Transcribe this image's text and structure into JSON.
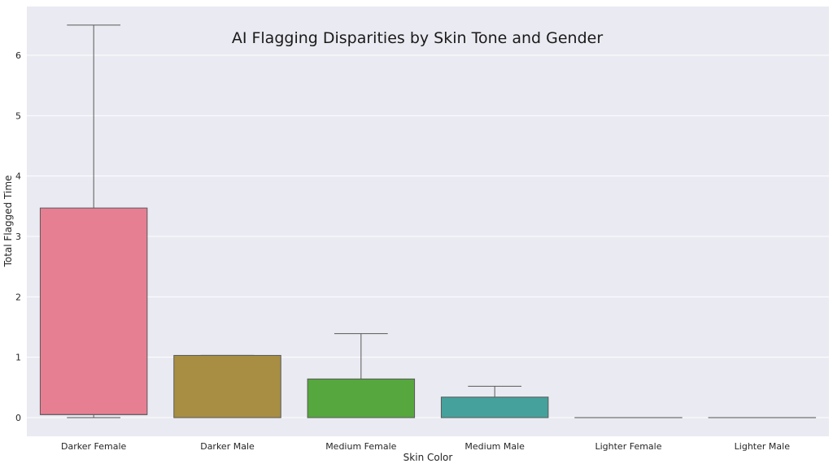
{
  "chart_data": {
    "type": "box",
    "title": "AI Flagging Disparities by Skin Tone and Gender",
    "xlabel": "Skin Color",
    "ylabel": "Total Flagged Time",
    "ylim": [
      -0.3,
      6.75
    ],
    "yticks": [
      0,
      1,
      2,
      3,
      4,
      5,
      6
    ],
    "grid": true,
    "categories": [
      "Darker Female",
      "Darker Male",
      "Medium Female",
      "Medium Male",
      "Lighter Female",
      "Lighter Male"
    ],
    "boxes": [
      {
        "category": "Darker Female",
        "whisker_low": 0,
        "q1": 0.05,
        "median": 0.05,
        "q3": 3.47,
        "whisker_high": 6.5,
        "color": "#e77f93"
      },
      {
        "category": "Darker Male",
        "whisker_low": 0,
        "q1": 0,
        "median": 0,
        "q3": 1.03,
        "whisker_high": 1.03,
        "color": "#a88e42"
      },
      {
        "category": "Medium Female",
        "whisker_low": 0,
        "q1": 0,
        "median": 0,
        "q3": 0.64,
        "whisker_high": 1.39,
        "color": "#56a73d"
      },
      {
        "category": "Medium Male",
        "whisker_low": 0,
        "q1": 0,
        "median": 0,
        "q3": 0.34,
        "whisker_high": 0.52,
        "color": "#45a19b"
      },
      {
        "category": "Lighter Female",
        "whisker_low": 0,
        "q1": 0,
        "median": 0,
        "q3": 0,
        "whisker_high": 0,
        "color": "#4c9bd8"
      },
      {
        "category": "Lighter Male",
        "whisker_low": 0,
        "q1": 0,
        "median": 0,
        "q3": 0,
        "whisker_high": 0,
        "color": "#d27fe0"
      }
    ]
  }
}
